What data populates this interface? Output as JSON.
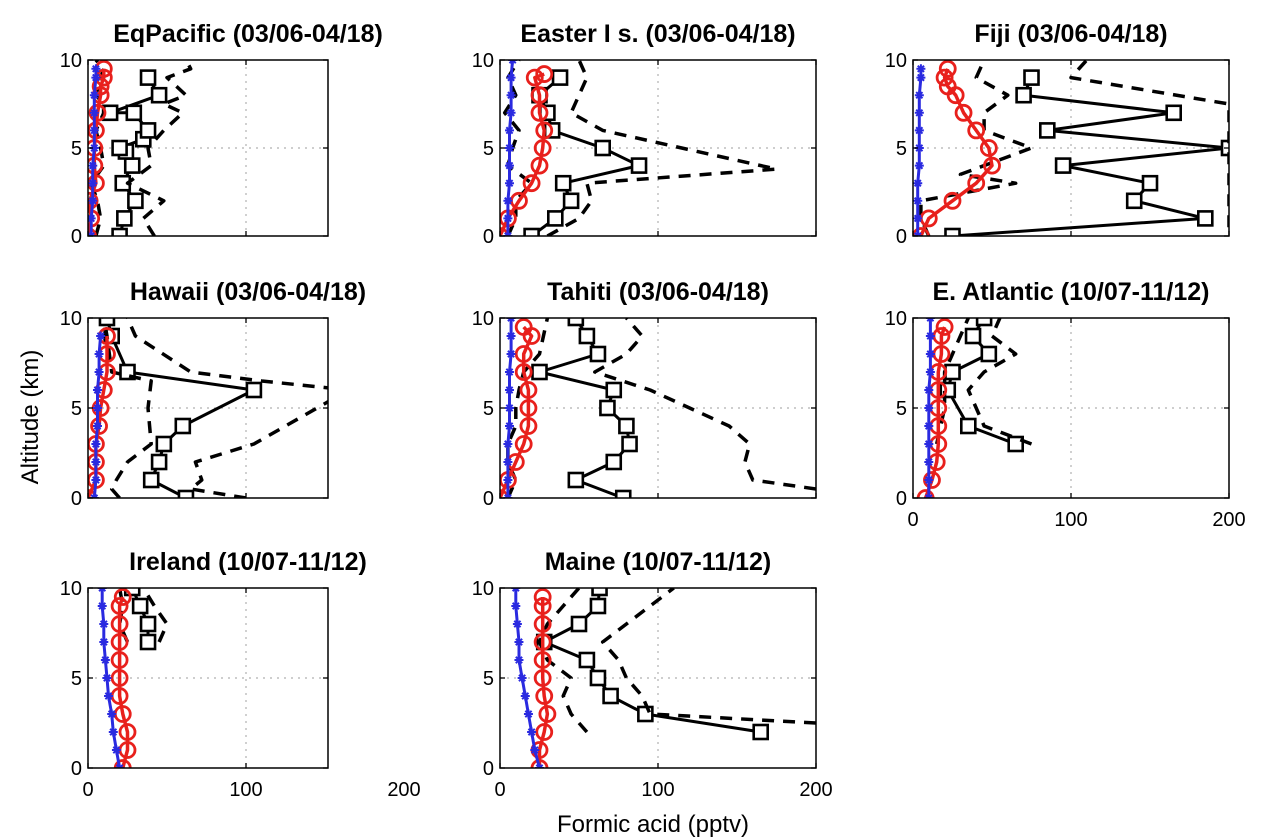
{
  "figure": {
    "ylabel": "Altitude (km)",
    "xlabel": "Formic acid (pptv)"
  },
  "colors": {
    "observed": "#000000",
    "model_red": "#e8201c",
    "model_blue": "#2a2ae0",
    "grid": "#b0b0b0"
  },
  "chart_data": [
    {
      "type": "line",
      "title": "EqPacific  (03/06-04/18)",
      "xlim": [
        0,
        200
      ],
      "ylim": [
        0,
        10
      ],
      "xticks": [
        "",
        "",
        ""
      ],
      "yticks": [
        "0",
        "5",
        "10"
      ],
      "grid": true,
      "series": [
        {
          "style": "observed",
          "x": [
            20,
            23,
            30,
            22,
            28,
            24,
            20,
            35,
            38,
            29,
            14,
            45,
            38
          ],
          "y": [
            0,
            1,
            2,
            3,
            4,
            4.8,
            5,
            5.5,
            6,
            7,
            7,
            8,
            9
          ]
        },
        {
          "style": "obs-bound",
          "x": [
            5,
            8,
            6,
            2,
            10,
            8,
            5,
            10,
            10,
            5,
            8,
            10,
            5
          ],
          "y": [
            0,
            1,
            2,
            3,
            4,
            5,
            6,
            7,
            7.5,
            8,
            9,
            9.5,
            10
          ]
        },
        {
          "style": "obs-bound",
          "x": [
            42,
            35,
            48,
            25,
            40,
            38,
            48,
            60,
            48,
            62,
            50,
            65,
            62
          ],
          "y": [
            0,
            1,
            2,
            3,
            4,
            5,
            6,
            7,
            7.5,
            8,
            9,
            9.5,
            10
          ]
        },
        {
          "style": "model-red",
          "x": [
            0,
            2,
            1,
            5,
            4,
            4,
            5,
            6,
            8,
            8,
            10,
            10
          ],
          "y": [
            0,
            1,
            2,
            3,
            4,
            5,
            6,
            7,
            8,
            8.5,
            9,
            9.5
          ]
        },
        {
          "style": "model-blue",
          "x": [
            2,
            2,
            3,
            3,
            3,
            4,
            4,
            4,
            4,
            5,
            5
          ],
          "y": [
            0,
            1,
            2,
            3,
            4,
            5,
            6,
            7,
            8,
            9,
            9.5
          ]
        }
      ]
    },
    {
      "type": "line",
      "title": "Easter I s.  (03/06-04/18)",
      "xlim": [
        0,
        200
      ],
      "ylim": [
        0,
        10
      ],
      "xticks": [
        "",
        "",
        ""
      ],
      "yticks": [
        "0",
        "5",
        "10"
      ],
      "grid": true,
      "series": [
        {
          "style": "observed",
          "x": [
            20,
            35,
            45,
            40,
            88,
            65,
            33,
            30,
            25,
            38
          ],
          "y": [
            0,
            1,
            2,
            3,
            4,
            5,
            6,
            7,
            8,
            9
          ]
        },
        {
          "style": "obs-bound",
          "x": [
            5,
            10,
            10,
            20,
            5,
            8,
            12,
            3,
            10,
            5,
            12
          ],
          "y": [
            0,
            1,
            2,
            3,
            4,
            5,
            6,
            7,
            8,
            9,
            10
          ]
        },
        {
          "style": "obs-bound",
          "x": [
            30,
            50,
            58,
            55,
            175,
            115,
            65,
            45,
            50,
            55,
            50
          ],
          "y": [
            0,
            1,
            2,
            3,
            3.8,
            5,
            6,
            7,
            8,
            9,
            10
          ]
        },
        {
          "style": "model-red",
          "x": [
            0,
            5,
            12,
            20,
            25,
            27,
            28,
            25,
            25,
            22,
            28
          ],
          "y": [
            0,
            1,
            2,
            3,
            4,
            5,
            6,
            7,
            8,
            9,
            9.2
          ]
        },
        {
          "style": "model-blue",
          "x": [
            5,
            5,
            5,
            6,
            6,
            6,
            6,
            7,
            7,
            7,
            8
          ],
          "y": [
            0,
            1,
            2,
            3,
            4,
            5,
            6,
            7,
            8,
            9,
            10
          ]
        }
      ]
    },
    {
      "type": "line",
      "title": "Fiji  (03/06-04/18)",
      "xlim": [
        0,
        200
      ],
      "ylim": [
        0,
        10
      ],
      "xticks": [
        "",
        "",
        ""
      ],
      "yticks": [
        "0",
        "5",
        "10"
      ],
      "grid": true,
      "series": [
        {
          "style": "observed",
          "x": [
            25,
            185,
            140,
            150,
            95,
            200,
            85,
            165,
            70,
            75
          ],
          "y": [
            0,
            1,
            2,
            3,
            4,
            5,
            6,
            7,
            8,
            9
          ]
        },
        {
          "style": "obs-bound",
          "x": [
            10,
            5,
            5,
            65,
            30,
            75,
            45,
            45,
            60,
            40,
            45
          ],
          "y": [
            0,
            1,
            2,
            3,
            3.5,
            5,
            6,
            7,
            8,
            9,
            10
          ]
        },
        {
          "style": "obs-bound",
          "x": [
            200,
            200,
            200,
            200,
            200,
            200,
            200,
            200,
            200,
            100,
            110
          ],
          "y": [
            0.5,
            1,
            2,
            3.5,
            4,
            5,
            6,
            7,
            7.5,
            9,
            10
          ]
        },
        {
          "style": "model-red",
          "x": [
            5,
            10,
            25,
            40,
            50,
            48,
            40,
            32,
            27,
            22,
            20,
            22
          ],
          "y": [
            0,
            1,
            2,
            3,
            4,
            5,
            6,
            7,
            8,
            8.5,
            9,
            9.5
          ]
        },
        {
          "style": "model-blue",
          "x": [
            3,
            3,
            3,
            3,
            4,
            4,
            4,
            4,
            4,
            5,
            5
          ],
          "y": [
            0,
            1,
            2,
            3,
            4,
            5,
            6,
            7,
            8,
            9,
            9.5
          ]
        }
      ]
    },
    {
      "type": "line",
      "title": "Hawaii  (03/06-04/18)",
      "xlim": [
        0,
        200
      ],
      "ylim": [
        0,
        10
      ],
      "xticks": [
        "",
        "",
        ""
      ],
      "yticks": [
        "0",
        "5",
        "10"
      ],
      "grid": true,
      "series": [
        {
          "style": "observed",
          "x": [
            62,
            40,
            45,
            48,
            60,
            105,
            25,
            15,
            12
          ],
          "y": [
            0,
            1,
            2,
            3,
            4,
            6,
            7,
            9,
            10
          ]
        },
        {
          "style": "obs-bound",
          "x": [
            20,
            15,
            18,
            25,
            40,
            38,
            40,
            15,
            12,
            10
          ],
          "y": [
            0,
            0.5,
            1,
            2,
            3,
            5,
            6.5,
            7,
            9,
            10
          ]
        },
        {
          "style": "obs-bound",
          "x": [
            100,
            65,
            72,
            68,
            105,
            165,
            110,
            65,
            30,
            25
          ],
          "y": [
            0,
            0.5,
            1,
            2,
            3,
            6,
            6.5,
            7,
            9,
            10
          ]
        },
        {
          "style": "model-red",
          "x": [
            0,
            5,
            5,
            5,
            7,
            8,
            10,
            12,
            12,
            12
          ],
          "y": [
            0,
            1,
            2,
            3,
            4,
            5,
            6,
            7,
            8,
            9
          ]
        },
        {
          "style": "model-blue",
          "x": [
            4,
            5,
            5,
            5,
            6,
            6,
            6,
            7,
            7,
            8
          ],
          "y": [
            0,
            1,
            2,
            3,
            4,
            5,
            6,
            7,
            8,
            9
          ]
        }
      ]
    },
    {
      "type": "line",
      "title": "Tahiti  (03/06-04/18)",
      "xlim": [
        0,
        200
      ],
      "ylim": [
        0,
        10
      ],
      "xticks": [
        "",
        "",
        ""
      ],
      "yticks": [
        "0",
        "5",
        "10"
      ],
      "grid": true,
      "series": [
        {
          "style": "observed",
          "x": [
            78,
            48,
            72,
            82,
            80,
            68,
            72,
            25,
            62,
            55,
            48
          ],
          "y": [
            0,
            1,
            2,
            3,
            4,
            5,
            6,
            7,
            8,
            9,
            10
          ]
        },
        {
          "style": "obs-bound",
          "x": [
            5,
            10,
            5,
            5,
            10,
            10,
            12,
            15,
            25,
            30
          ],
          "y": [
            0,
            1,
            2,
            3,
            4,
            5,
            6,
            7,
            8,
            10
          ]
        },
        {
          "style": "obs-bound",
          "x": [
            200,
            160,
            155,
            158,
            145,
            120,
            95,
            60,
            80,
            90,
            80
          ],
          "y": [
            0.5,
            1,
            2,
            3,
            4,
            5,
            6,
            7,
            8,
            9,
            10
          ]
        },
        {
          "style": "model-red",
          "x": [
            0,
            5,
            10,
            15,
            18,
            18,
            18,
            15,
            15,
            20,
            15
          ],
          "y": [
            0,
            1,
            2,
            3,
            4,
            5,
            6,
            7,
            8,
            9,
            9.5
          ]
        },
        {
          "style": "model-blue",
          "x": [
            5,
            5,
            5,
            5,
            6,
            6,
            6,
            6,
            7,
            7,
            7
          ],
          "y": [
            0,
            1,
            2,
            3,
            4,
            5,
            6,
            7,
            8,
            9,
            10
          ]
        }
      ]
    },
    {
      "type": "line",
      "title": "E.  Atlantic  (10/07-11/12)",
      "xlim": [
        0,
        200
      ],
      "ylim": [
        0,
        10
      ],
      "xticks": [
        "0",
        "100",
        "200"
      ],
      "yticks": [
        "0",
        "5",
        "10"
      ],
      "grid": true,
      "series": [
        {
          "style": "observed",
          "x": [
            65,
            35,
            22,
            25,
            48,
            38,
            45
          ],
          "y": [
            3,
            4,
            6,
            7,
            8,
            9,
            10
          ]
        },
        {
          "style": "obs-bound",
          "x": [
            15,
            20,
            20,
            25,
            30,
            35
          ],
          "y": [
            3,
            5,
            7,
            8,
            9,
            10
          ]
        },
        {
          "style": "obs-bound",
          "x": [
            75,
            45,
            35,
            45,
            65,
            50,
            55
          ],
          "y": [
            3,
            4,
            6,
            7,
            8,
            9,
            10
          ]
        },
        {
          "style": "model-red",
          "x": [
            8,
            12,
            15,
            16,
            16,
            16,
            16,
            16,
            18,
            18,
            20
          ],
          "y": [
            0,
            1,
            2,
            3,
            4,
            5,
            6,
            7,
            8,
            9,
            9.5
          ]
        },
        {
          "style": "model-blue",
          "x": [
            10,
            10,
            10,
            10,
            10,
            10,
            10,
            11,
            11,
            11,
            11
          ],
          "y": [
            0,
            1,
            2,
            3,
            4,
            5,
            6,
            7,
            8,
            9,
            10
          ]
        }
      ]
    },
    {
      "type": "line",
      "title": "Ireland  (10/07-11/12)",
      "xlim": [
        0,
        200
      ],
      "ylim": [
        0,
        10
      ],
      "xticks": [
        "0",
        "100",
        "200"
      ],
      "yticks": [
        "0",
        "5",
        "10"
      ],
      "grid": true,
      "series": [
        {
          "style": "observed",
          "x": [
            38,
            38,
            33,
            28
          ],
          "y": [
            7,
            8,
            9,
            10
          ]
        },
        {
          "style": "obs-bound",
          "x": [
            25,
            20,
            22,
            20
          ],
          "y": [
            7,
            8,
            9,
            10
          ]
        },
        {
          "style": "obs-bound",
          "x": [
            45,
            50,
            42,
            35
          ],
          "y": [
            7,
            8,
            9,
            10
          ]
        },
        {
          "style": "model-red",
          "x": [
            22,
            25,
            25,
            22,
            20,
            20,
            20,
            20,
            20,
            20,
            22
          ],
          "y": [
            0,
            1,
            2,
            3,
            4,
            5,
            6,
            7,
            8,
            9,
            9.5
          ]
        },
        {
          "style": "model-blue",
          "x": [
            20,
            18,
            16,
            15,
            13,
            12,
            11,
            10,
            10,
            9,
            9
          ],
          "y": [
            0,
            1,
            2,
            3,
            4,
            5,
            6,
            7,
            8,
            9,
            10
          ]
        }
      ]
    },
    {
      "type": "line",
      "title": "Maine  (10/07-11/12)",
      "xlim": [
        0,
        200
      ],
      "ylim": [
        0,
        10
      ],
      "xticks": [
        "0",
        "100",
        "200"
      ],
      "yticks": [
        "0",
        "5",
        "10"
      ],
      "grid": true,
      "series": [
        {
          "style": "observed",
          "x": [
            165,
            92,
            70,
            62,
            55,
            28,
            50,
            62,
            63
          ],
          "y": [
            2,
            3,
            4,
            5,
            6,
            7,
            8,
            9,
            10
          ]
        },
        {
          "style": "obs-bound",
          "x": [
            55,
            45,
            40,
            45,
            30,
            25,
            30,
            40,
            50
          ],
          "y": [
            2,
            3,
            4,
            5,
            6,
            7,
            8,
            9,
            10
          ]
        },
        {
          "style": "obs-bound",
          "x": [
            200,
            95,
            90,
            80,
            75,
            65,
            80,
            95,
            110
          ],
          "y": [
            2.5,
            3,
            4,
            5,
            6,
            7,
            8,
            9,
            10
          ]
        },
        {
          "style": "model-red",
          "x": [
            25,
            25,
            28,
            30,
            28,
            27,
            27,
            27,
            27,
            27,
            27
          ],
          "y": [
            0,
            1,
            2,
            3,
            4,
            5,
            6,
            7,
            8,
            9,
            9.5
          ]
        },
        {
          "style": "model-blue",
          "x": [
            25,
            22,
            20,
            18,
            16,
            14,
            12,
            12,
            11,
            10,
            10
          ],
          "y": [
            0,
            1,
            2,
            3,
            4,
            5,
            6,
            7,
            8,
            9,
            10
          ]
        }
      ]
    }
  ]
}
